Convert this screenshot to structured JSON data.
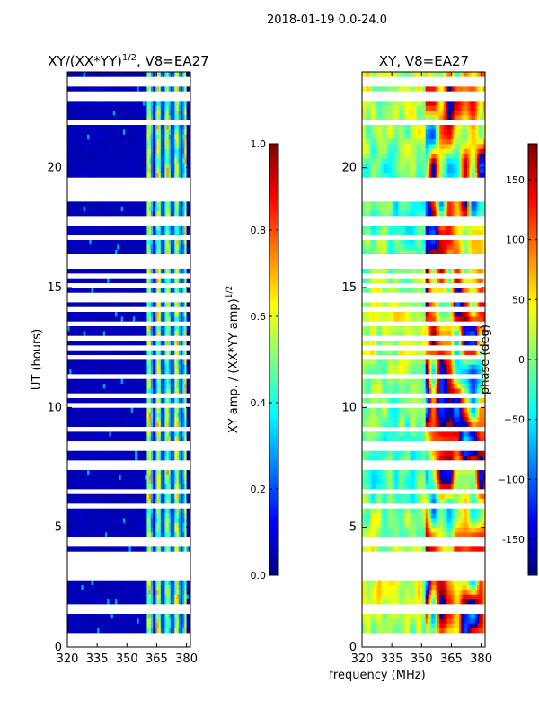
{
  "figure": {
    "suptitle": "2018-01-19 0.0-24.0",
    "shared_xlabel": "frequency (MHz)"
  },
  "colors": {
    "jet": [
      "#00007f",
      "#0000ff",
      "#007fff",
      "#00ffff",
      "#7fff7f",
      "#ffff00",
      "#ff7f00",
      "#ff0000",
      "#7f0000"
    ],
    "gap": "#ffffff"
  },
  "chart_data": [
    {
      "type": "heatmap",
      "id": "amp",
      "title": "XY/(XX*YY)^1/2, V8=EA27",
      "title_main": "XY/(XX*YY)",
      "title_sup": "1/2",
      "title_rest": ", V8=EA27",
      "xlabel": "",
      "ylabel": "UT (hours)",
      "xlim": [
        320,
        382
      ],
      "ylim": [
        0,
        24
      ],
      "xticks": [
        "320",
        "335",
        "350",
        "365",
        "380"
      ],
      "yticks": [
        "0",
        "5",
        "10",
        "15",
        "20"
      ],
      "colorbar": {
        "label": "XY amp. / (XX*YY amp)^1/2",
        "label_main": "XY amp. / (XX*YY amp)",
        "label_sup": "1/2",
        "range": [
          0.0,
          1.0
        ],
        "ticks": [
          "0.0",
          "0.2",
          "0.4",
          "0.6",
          "0.8",
          "1.0"
        ]
      },
      "description": "Low amplitude (~0.05) across 320-360 MHz; bright vertical stripes (0.3-0.8) between ~360 and 380 MHz",
      "bright_band_mhz": [
        360,
        380
      ]
    },
    {
      "type": "heatmap",
      "id": "phase",
      "title": "XY, V8=EA27",
      "xlabel": "frequency (MHz)",
      "ylabel": "",
      "xlim": [
        320,
        382
      ],
      "ylim": [
        0,
        24
      ],
      "xticks": [
        "320",
        "335",
        "350",
        "365",
        "380"
      ],
      "yticks": [
        "0",
        "5",
        "10",
        "15",
        "20"
      ],
      "colorbar": {
        "label": "phase (deg)",
        "range": [
          -180,
          180
        ],
        "ticks": [
          "-150",
          "−100",
          "−50",
          "0",
          "50",
          "100",
          "150"
        ]
      },
      "description": "Phase near 0 deg (green/yellow) at low frequency, wrapping between +180 and -180 (red/blue) above ~355 MHz"
    }
  ],
  "gap_hours": [
    0.15,
    0.35,
    0.45,
    1.45,
    1.55,
    1.65,
    2.85,
    3.05,
    3.3,
    3.55,
    3.75,
    3.95,
    4.2,
    4.45,
    5.9,
    6.55,
    7.5,
    7.65,
    7.8,
    8.2,
    8.35,
    8.5,
    9.1,
    10.1,
    10.55,
    11.3,
    12.05,
    12.5,
    12.9,
    13.45,
    14.0,
    14.4,
    14.75,
    15.15,
    15.5,
    15.95,
    16.05,
    16.25,
    17.0,
    17.6,
    17.9,
    18.7,
    18.95,
    19.15,
    19.35,
    19.55,
    21.8,
    22.8,
    23.15,
    23.45,
    23.75
  ]
}
